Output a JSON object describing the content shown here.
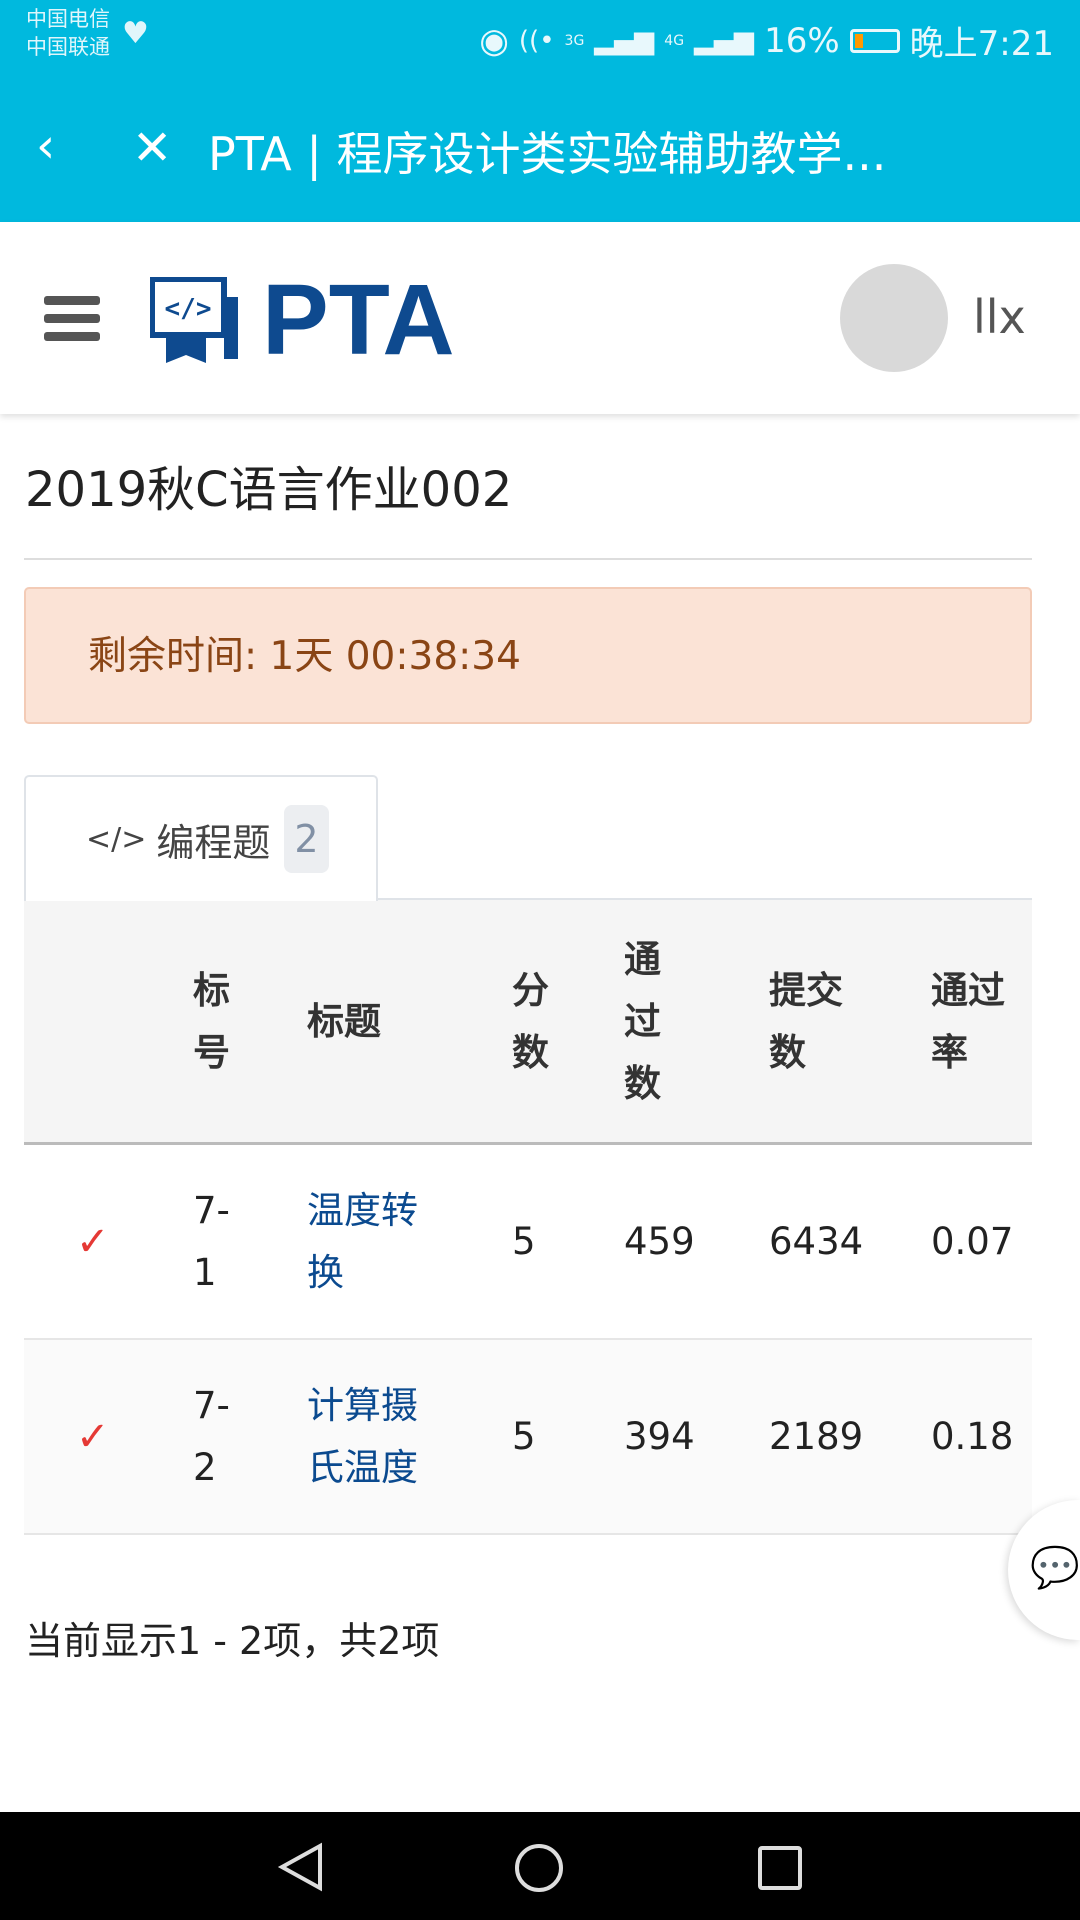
{
  "status_bar": {
    "carrier1": "中国电信",
    "carrier2": "中国联通",
    "network1": "3G",
    "network2": "4G",
    "battery": "16%",
    "time": "晚上7:21"
  },
  "browser": {
    "title": "PTA | 程序设计类实验辅助教学...",
    "back_icon": "chevron-left-icon",
    "close_icon": "close-icon"
  },
  "header": {
    "logo_text": "PTA",
    "username": "llx"
  },
  "page": {
    "title": "2019秋C语言作业002",
    "remaining_time": "剩余时间: 1天 00:38:34"
  },
  "tab": {
    "label": "编程题",
    "count": "2",
    "icon": "</>"
  },
  "table": {
    "headers": [
      "标号",
      "标题",
      "分数",
      "通过数",
      "提交数",
      "通过率"
    ],
    "rows": [
      {
        "status": "✓",
        "id": "7-1",
        "title": "温度转换",
        "score": "5",
        "passed": "459",
        "submitted": "6434",
        "rate": "0.07"
      },
      {
        "status": "✓",
        "id": "7-2",
        "title": "计算摄氏温度",
        "score": "5",
        "passed": "394",
        "submitted": "2189",
        "rate": "0.18"
      }
    ]
  },
  "footer": {
    "summary": "当前显示1 - 2项，共2项"
  },
  "colors": {
    "topbar": "#00b9de",
    "logo": "#0e4a8f",
    "check": "#e53935",
    "alert_bg": "#fbe3d6"
  }
}
